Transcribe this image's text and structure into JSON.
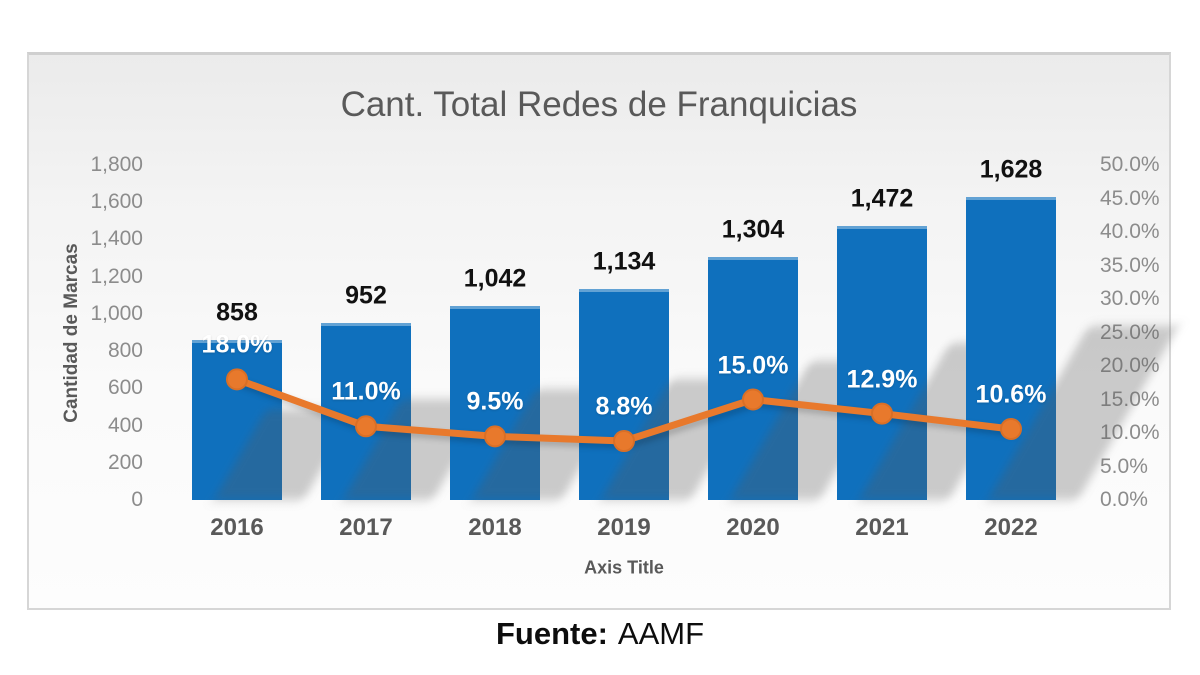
{
  "page": {
    "source_label": "Fuente:",
    "source_value": "AAMF"
  },
  "chart_data": {
    "type": "combo-bar-line",
    "title": "Cant. Total Redes de Franquicias",
    "xlabel": "Axis Title",
    "ylabel_left": "Cantidad de Marcas",
    "categories": [
      "2016",
      "2017",
      "2018",
      "2019",
      "2020",
      "2021",
      "2022"
    ],
    "series": [
      {
        "name": "bars",
        "type": "bar",
        "axis": "left",
        "values": [
          858,
          952,
          1042,
          1134,
          1304,
          1472,
          1628
        ],
        "labels": [
          "858",
          "952",
          "1,042",
          "1,134",
          "1,304",
          "1,472",
          "1,628"
        ],
        "color": "#0f70bd"
      },
      {
        "name": "line",
        "type": "line",
        "axis": "right",
        "values": [
          18.0,
          11.0,
          9.5,
          8.8,
          15.0,
          12.9,
          10.6
        ],
        "labels": [
          "18.0%",
          "11.0%",
          "9.5%",
          "8.8%",
          "15.0%",
          "12.9%",
          "10.6%"
        ],
        "color": "#e8792c",
        "marker_stroke": "#d96f26"
      }
    ],
    "left_axis": {
      "min": 0,
      "max": 1800,
      "step": 200,
      "tick_labels": [
        "1,800",
        "1,600",
        "1,400",
        "1,200",
        "1,000",
        "800",
        "600",
        "400",
        "200",
        "0"
      ]
    },
    "right_axis": {
      "min": 0,
      "max": 50,
      "step": 5,
      "tick_labels": [
        "50.0%",
        "45.0%",
        "40.0%",
        "35.0%",
        "30.0%",
        "25.0%",
        "20.0%",
        "15.0%",
        "10.0%",
        "5.0%",
        "0.0%"
      ]
    },
    "grid": false,
    "legend_position": "none"
  }
}
